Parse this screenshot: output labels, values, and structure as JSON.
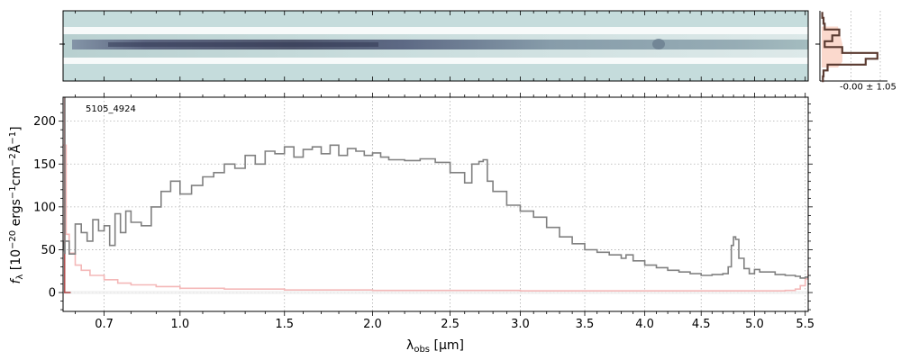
{
  "chart_data": {
    "type": "line",
    "annotation": "5105_4924",
    "side_panel_text": "-0.00 ± 1.05",
    "xlabel": {
      "main": "λ",
      "sub": "obs",
      "unit": " [μm]"
    },
    "ylabel": {
      "f": "f",
      "sub": "λ",
      "rest": " [10",
      "e1": "−20",
      "p2": " ergs",
      "e2": "−1",
      "p3": "cm",
      "e3": "−2",
      "p4": "Å",
      "e4": "−1",
      "close": "]"
    },
    "x_tick_labels": [
      "0.7",
      "1.0",
      "1.5",
      "2.0",
      "2.5",
      "3.0",
      "3.5",
      "4.0",
      "4.5",
      "5.0",
      "5.5"
    ],
    "x_tick_values": [
      0.7,
      1.0,
      1.5,
      2.0,
      2.5,
      3.0,
      3.5,
      4.0,
      4.5,
      5.0,
      5.5
    ],
    "x_scale": "sqrt",
    "xlim": [
      0.56,
      5.53
    ],
    "ylim": [
      -22,
      228
    ],
    "y_ticks": [
      0,
      50,
      100,
      150,
      200
    ],
    "grid": true,
    "colors": {
      "flux": "#808080",
      "error": "#f4b8b8",
      "model": "#b05050",
      "image": "#c5dcdc",
      "trace": "#3a3f5a",
      "side_hist": "#5a3a30",
      "side_fill": "#fad0c0"
    },
    "series": [
      {
        "x": [
          0.56,
          0.58,
          0.6,
          0.62,
          0.64,
          0.66,
          0.68,
          0.7,
          0.72,
          0.74,
          0.76,
          0.78,
          0.8,
          0.84,
          0.88,
          0.92,
          0.96,
          1.0,
          1.05,
          1.1,
          1.15,
          1.2,
          1.25,
          1.3,
          1.35,
          1.4,
          1.45,
          1.5,
          1.55,
          1.6,
          1.65,
          1.7,
          1.75,
          1.8,
          1.85,
          1.9,
          1.95,
          2.0,
          2.05,
          2.1,
          2.2,
          2.3,
          2.4,
          2.5,
          2.6,
          2.65,
          2.7,
          2.73,
          2.76,
          2.8,
          2.9,
          3.0,
          3.1,
          3.2,
          3.3,
          3.4,
          3.5,
          3.6,
          3.7,
          3.8,
          3.84,
          3.9,
          4.0,
          4.1,
          4.2,
          4.3,
          4.4,
          4.5,
          4.6,
          4.7,
          4.75,
          4.78,
          4.8,
          4.82,
          4.85,
          4.9,
          4.95,
          5.0,
          5.05,
          5.1,
          5.2,
          5.3,
          5.4,
          5.45,
          5.5
        ],
        "y": [
          60,
          45,
          80,
          70,
          60,
          85,
          72,
          78,
          55,
          92,
          70,
          95,
          82,
          78,
          100,
          118,
          130,
          115,
          125,
          135,
          140,
          150,
          145,
          160,
          150,
          165,
          162,
          170,
          158,
          167,
          170,
          162,
          172,
          160,
          168,
          165,
          160,
          163,
          158,
          155,
          154,
          156,
          152,
          140,
          128,
          150,
          153,
          155,
          130,
          118,
          102,
          95,
          88,
          76,
          65,
          57,
          50,
          47,
          44,
          40,
          44,
          37,
          32,
          29,
          26,
          24,
          22,
          20,
          21,
          22,
          30,
          55,
          65,
          62,
          40,
          28,
          22,
          27,
          24,
          24,
          21,
          20,
          19,
          17,
          18
        ]
      }
    ],
    "error_series": {
      "x": [
        0.56,
        0.57,
        0.58,
        0.6,
        0.62,
        0.65,
        0.7,
        0.75,
        0.8,
        0.9,
        1.0,
        1.2,
        1.5,
        2.0,
        3.0,
        4.0,
        5.0,
        5.3,
        5.4,
        5.45,
        5.5,
        5.53
      ],
      "y": [
        172,
        68,
        46,
        32,
        26,
        20,
        15,
        11,
        9,
        7,
        5,
        4,
        3,
        2.5,
        2,
        2,
        2,
        2.5,
        4,
        8,
        16,
        26
      ]
    },
    "side_profile": {
      "offsets": [
        -5,
        -4,
        -3,
        -2,
        -1,
        0,
        1,
        2,
        3,
        4,
        5,
        6
      ],
      "values": [
        0.01,
        0.03,
        0.05,
        0.3,
        0.18,
        0.05,
        0.35,
        0.95,
        0.75,
        0.1,
        0.03,
        0.02
      ]
    }
  }
}
